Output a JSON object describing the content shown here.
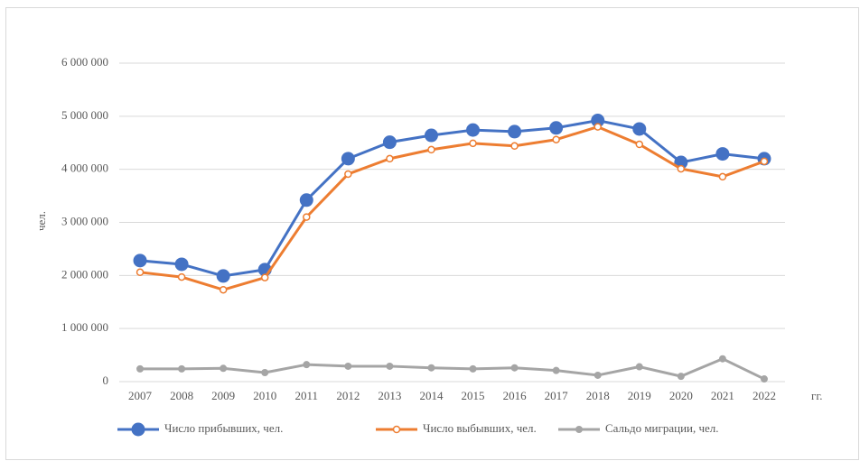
{
  "chart_data": {
    "type": "line",
    "y_label": "чел.",
    "x_label": "гг.",
    "categories": [
      "2007",
      "2008",
      "2009",
      "2010",
      "2011",
      "2012",
      "2013",
      "2014",
      "2015",
      "2016",
      "2017",
      "2018",
      "2019",
      "2020",
      "2021",
      "2022"
    ],
    "series": [
      {
        "name": "Число прибывших, чел.",
        "color": "#4472c4",
        "values": [
          2280000,
          2210000,
          1990000,
          2110000,
          3420000,
          4200000,
          4510000,
          4640000,
          4740000,
          4710000,
          4780000,
          4920000,
          4760000,
          4130000,
          4290000,
          4200000
        ]
      },
      {
        "name": "Число выбывших, чел.",
        "color": "#ed7d31",
        "values": [
          2060000,
          1970000,
          1730000,
          1960000,
          3100000,
          3910000,
          4200000,
          4370000,
          4490000,
          4440000,
          4560000,
          4800000,
          4470000,
          4010000,
          3860000,
          4150000
        ]
      },
      {
        "name": "Сальдо миграции, чел.",
        "color": "#a5a5a5",
        "values": [
          240000,
          240000,
          250000,
          170000,
          320000,
          290000,
          290000,
          260000,
          240000,
          260000,
          210000,
          120000,
          280000,
          100000,
          430000,
          50000
        ]
      }
    ],
    "ylim": [
      0,
      6000000
    ],
    "yticks": [
      0,
      {
        "value": 1000000,
        "label": "1 000 000"
      },
      {
        "value": 2000000,
        "label": "2 000 000"
      },
      {
        "value": 3000000,
        "label": "3 000 000"
      },
      {
        "value": 4000000,
        "label": "4 000 000"
      },
      {
        "value": 5000000,
        "label": "5 000 000"
      },
      {
        "value": 6000000,
        "label": "6 000 000"
      }
    ],
    "grid": true,
    "legend": "bottom"
  }
}
